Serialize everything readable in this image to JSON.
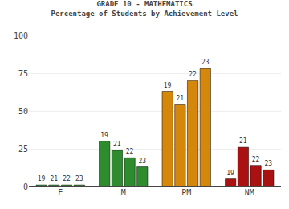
{
  "chart_data": {
    "type": "bar",
    "title": "GRADE 10 - MATHEMATICS",
    "subtitle": "Percentage of Students by Achievement Level",
    "categories": [
      "E",
      "M",
      "PM",
      "NM"
    ],
    "series": [
      {
        "name": "19",
        "values": [
          1,
          30,
          63,
          5
        ],
        "colors": [
          "#2e8b2e",
          "#2e8b2e",
          "#d4870a",
          "#aa1111"
        ]
      },
      {
        "name": "21",
        "values": [
          1,
          24,
          54,
          26
        ],
        "colors": [
          "#2e8b2e",
          "#2e8b2e",
          "#d4870a",
          "#aa1111"
        ]
      },
      {
        "name": "22",
        "values": [
          1,
          19,
          70,
          14
        ],
        "colors": [
          "#2e8b2e",
          "#2e8b2e",
          "#d4870a",
          "#aa1111"
        ]
      },
      {
        "name": "23",
        "values": [
          1,
          13,
          78,
          11
        ],
        "colors": [
          "#2e8b2e",
          "#2e8b2e",
          "#d4870a",
          "#aa1111"
        ]
      }
    ],
    "ylim": [
      0,
      100
    ],
    "yticks": [
      0,
      25,
      50,
      75,
      100
    ],
    "grid": true
  }
}
